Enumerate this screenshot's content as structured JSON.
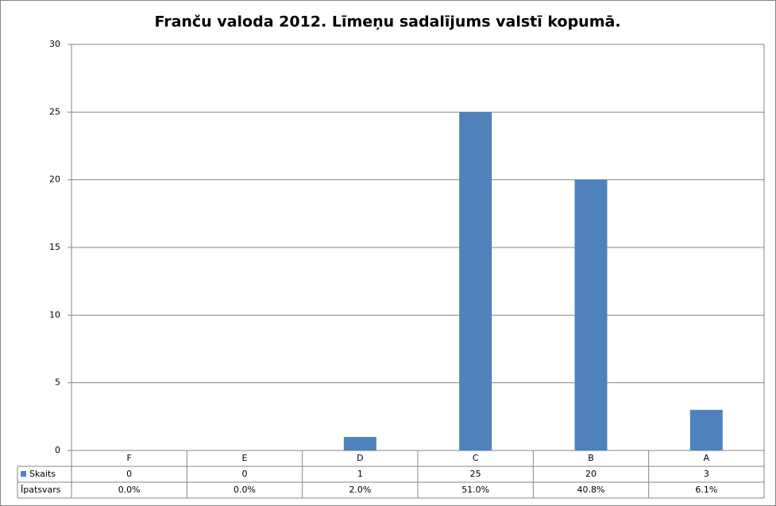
{
  "chart_data": {
    "type": "bar",
    "title": "Franču valoda 2012. Līmeņu sadalījums valstī kopumā.",
    "categories": [
      "F",
      "E",
      "D",
      "C",
      "B",
      "A"
    ],
    "series": [
      {
        "name": "Skaits",
        "color": "#4f81bd",
        "values": [
          0,
          0,
          1,
          25,
          20,
          3
        ]
      }
    ],
    "table_rows": [
      {
        "name": "Īpatsvars",
        "values": [
          0,
          0,
          2,
          51,
          40.8,
          6.1
        ],
        "value_labels": [
          "0.0%",
          "0.0%",
          "2.0%",
          "51.0%",
          "40.8%",
          "6.1%"
        ]
      }
    ],
    "ylim": [
      0,
      30
    ],
    "yticks": [
      0,
      5,
      10,
      15,
      20,
      25,
      30
    ],
    "grid": true
  }
}
